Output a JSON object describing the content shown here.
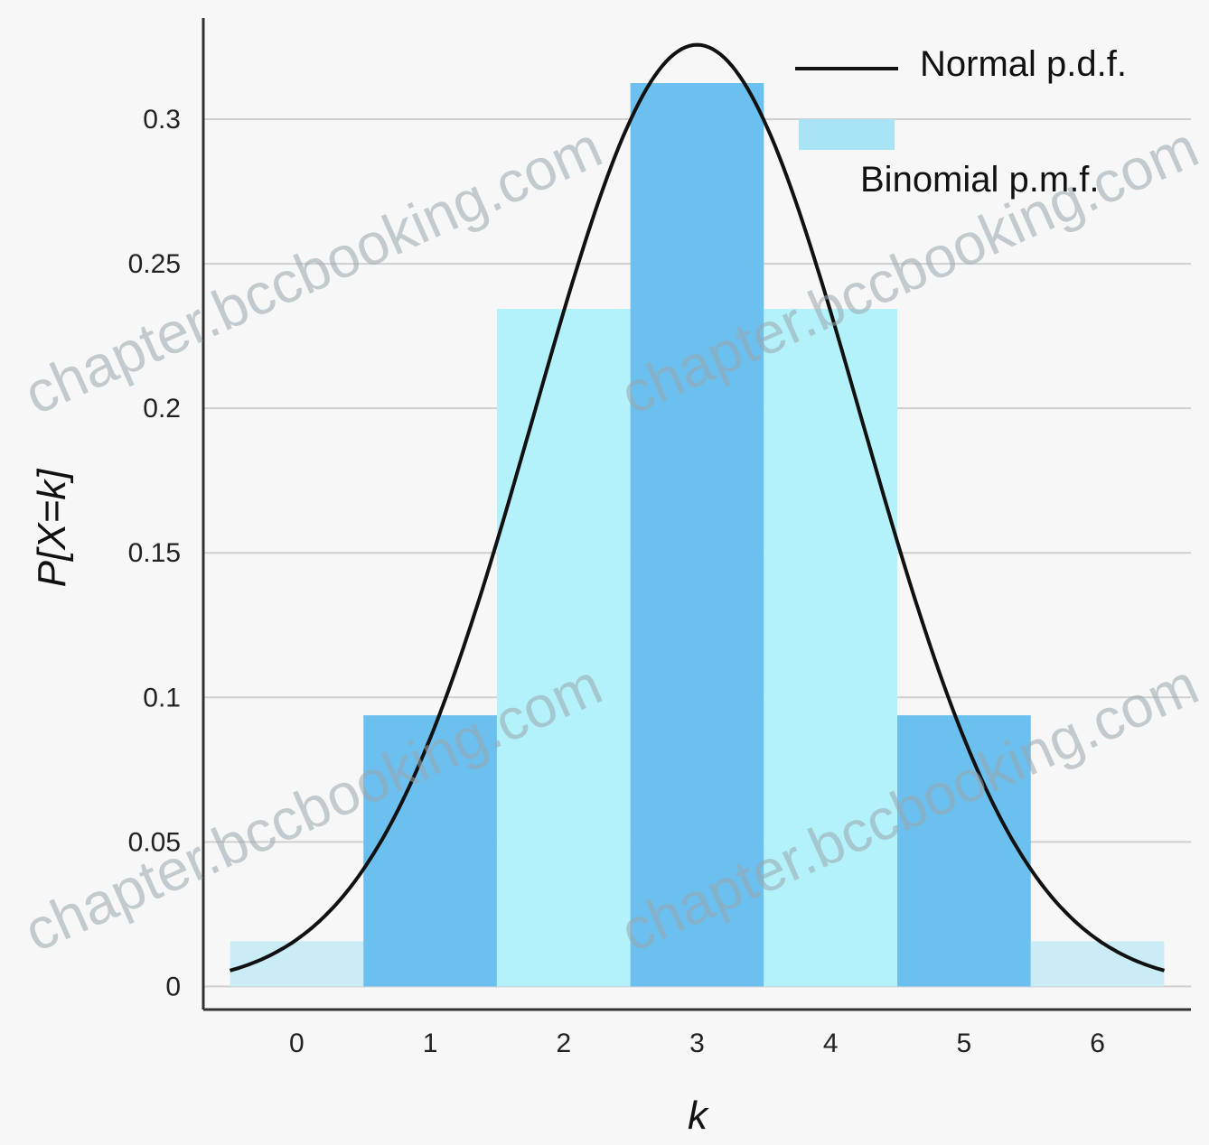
{
  "chart_data": {
    "type": "bar",
    "x": [
      0,
      1,
      2,
      3,
      4,
      5,
      6
    ],
    "xticks": [
      "0",
      "1",
      "2",
      "3",
      "4",
      "5",
      "6"
    ],
    "series": [
      {
        "name": "Binomial p.m.f.",
        "type": "bar",
        "values": [
          0.0156,
          0.0938,
          0.2344,
          0.3125,
          0.2344,
          0.0938,
          0.0156
        ],
        "colors": [
          "#c9ecf7",
          "#6cc0ef",
          "#b3f1fb",
          "#6cc0ef",
          "#b3f1fb",
          "#6cc0ef",
          "#c9ecf7"
        ]
      },
      {
        "name": "Normal p.d.f.",
        "type": "line",
        "mean": 3,
        "sd": 1.2247,
        "color": "#111111"
      }
    ],
    "yticks": [
      "0",
      "0.05",
      "0.1",
      "0.15",
      "0.2",
      "0.25",
      "0.3"
    ],
    "ytick_values": [
      0,
      0.05,
      0.1,
      0.15,
      0.2,
      0.25,
      0.3
    ],
    "xlabel": "k",
    "ylabel": "P[X=k]",
    "xlim": [
      -0.7,
      6.7
    ],
    "ylim": [
      -0.008,
      0.335
    ],
    "grid": true,
    "legend": "top-right",
    "legend_items": [
      {
        "label": "Normal p.d.f.",
        "kind": "line",
        "color": "#111111"
      },
      {
        "label": "Binomial p.m.f.",
        "kind": "patch",
        "color": "#a9e3f6"
      }
    ]
  },
  "watermarks": [
    "chapter.bccbooking.com",
    "chapter.bccbooking.com",
    "chapter.bccbooking.com",
    "chapter.bccbooking.com"
  ]
}
